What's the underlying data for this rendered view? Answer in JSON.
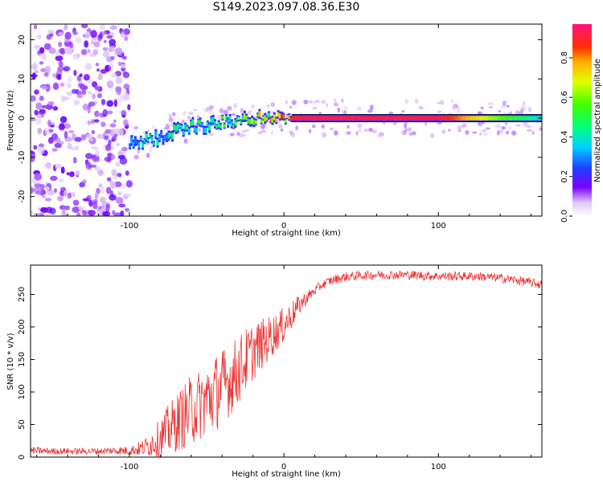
{
  "title": "S149.2023.097.08.36.E30",
  "chart_data": [
    {
      "type": "heatmap",
      "xlabel": "Height of straight line (km)",
      "ylabel": "Frequency (Hz)",
      "xlim": [
        -164,
        167
      ],
      "ylim": [
        -25,
        24
      ],
      "x_ticks": [
        -100,
        0,
        100
      ],
      "y_ticks": [
        20,
        10,
        0,
        -10,
        -20
      ],
      "colorbar": {
        "label": "Normalized spectral amplitude",
        "range": [
          0,
          0.97
        ],
        "ticks": [
          "0.0",
          "0.2",
          "0.4",
          "0.6",
          "0.8"
        ]
      },
      "ridge": {
        "description_points_x": [
          -100,
          -90,
          -80,
          -70,
          -60,
          -50,
          -40,
          -30,
          -20,
          -10,
          0,
          10,
          50,
          100,
          140,
          167
        ],
        "frequency": [
          -7,
          -6,
          -5,
          -3,
          -2,
          -2,
          -1,
          -1,
          0,
          0,
          0,
          0,
          0,
          0,
          0,
          0
        ],
        "amplitude": [
          0.35,
          0.45,
          0.45,
          0.5,
          0.5,
          0.5,
          0.55,
          0.6,
          0.7,
          0.75,
          0.9,
          0.95,
          0.95,
          0.95,
          0.6,
          0.4
        ]
      },
      "noise_region_x": [
        -164,
        -100
      ]
    },
    {
      "type": "line",
      "xlabel": "Height of straight line (km)",
      "ylabel": "SNR (10 * v/v)",
      "xlim": [
        -164,
        167
      ],
      "ylim": [
        0,
        295
      ],
      "x_ticks": [
        -100,
        0,
        100
      ],
      "y_ticks": [
        0,
        50,
        100,
        150,
        200,
        250
      ],
      "series": [
        {
          "color": "#ee3333",
          "x": [
            -164,
            -150,
            -140,
            -130,
            -120,
            -110,
            -100,
            -95,
            -90,
            -85,
            -80,
            -75,
            -70,
            -65,
            -60,
            -55,
            -50,
            -45,
            -40,
            -35,
            -30,
            -25,
            -20,
            -15,
            -10,
            -5,
            0,
            5,
            10,
            15,
            20,
            25,
            30,
            40,
            50,
            60,
            70,
            80,
            90,
            100,
            110,
            120,
            130,
            140,
            150,
            160,
            167
          ],
          "y": [
            10,
            9,
            9,
            9,
            9,
            10,
            10,
            12,
            15,
            22,
            30,
            40,
            52,
            62,
            72,
            80,
            88,
            98,
            108,
            118,
            132,
            148,
            162,
            172,
            182,
            192,
            203,
            218,
            234,
            245,
            256,
            265,
            271,
            277,
            279,
            280,
            280,
            280,
            279,
            278,
            278,
            278,
            277,
            275,
            272,
            268,
            265
          ],
          "noise_amplitude": [
            6,
            5,
            5,
            5,
            5,
            6,
            7,
            10,
            14,
            22,
            30,
            40,
            45,
            50,
            55,
            55,
            60,
            60,
            60,
            55,
            55,
            50,
            45,
            40,
            35,
            30,
            28,
            22,
            15,
            10,
            8,
            7,
            7,
            7,
            7,
            7,
            7,
            7,
            7,
            7,
            7,
            7,
            7,
            7,
            7,
            7,
            7
          ]
        }
      ]
    }
  ]
}
